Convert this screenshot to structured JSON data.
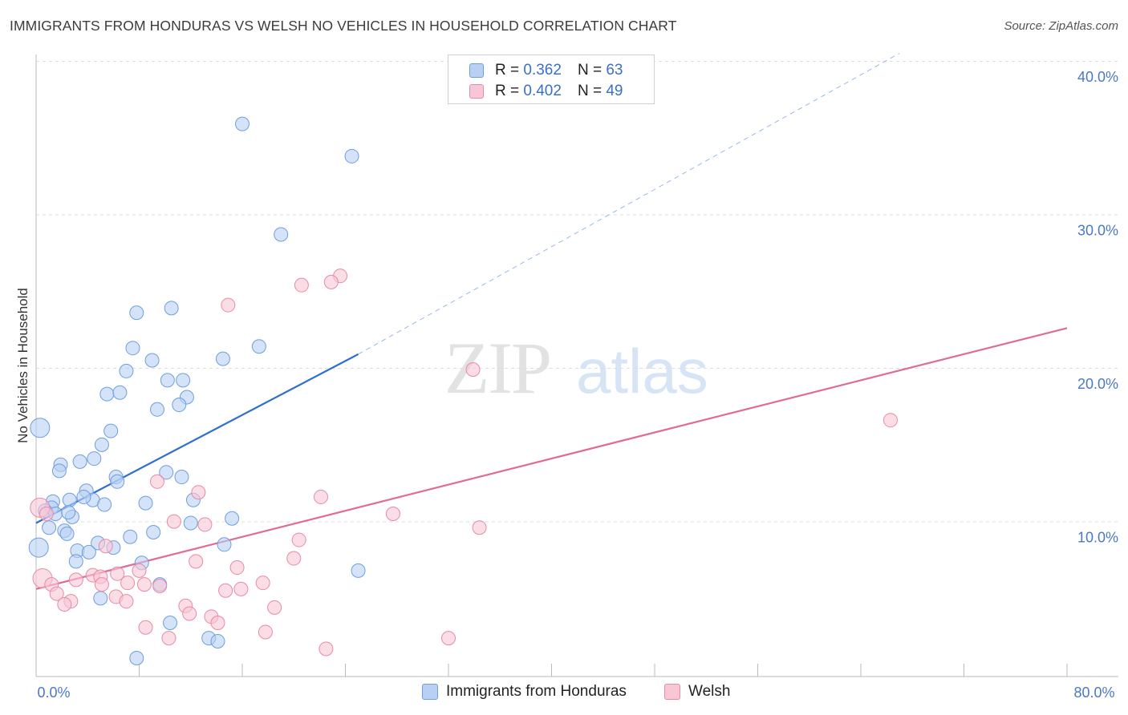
{
  "title": "IMMIGRANTS FROM HONDURAS VS WELSH NO VEHICLES IN HOUSEHOLD CORRELATION CHART",
  "source": "Source: ZipAtlas.com",
  "watermark": {
    "zip": "ZIP",
    "atlas": "atlas"
  },
  "legend": {
    "r_label": "R =",
    "n_label": "N =",
    "series": [
      {
        "name": "Immigrants from Honduras",
        "r": "0.362",
        "n": "63",
        "fill": "#b8d0f4",
        "stroke": "#6f9ee0"
      },
      {
        "name": "Welsh",
        "r": "0.402",
        "n": "49",
        "fill": "#f9c6d6",
        "stroke": "#e88aa8"
      }
    ]
  },
  "chart_data": {
    "type": "scatter",
    "title": "IMMIGRANTS FROM HONDURAS VS WELSH NO VEHICLES IN HOUSEHOLD CORRELATION CHART",
    "ylabel": "No Vehicles in Household",
    "xlabel": "",
    "xlim": [
      0,
      80
    ],
    "ylim": [
      0,
      40
    ],
    "x_tick_labels": [
      {
        "value": 0,
        "label": "0.0%"
      },
      {
        "value": 80,
        "label": "80.0%"
      }
    ],
    "y_tick_labels": [
      {
        "value": 10,
        "label": "10.0%"
      },
      {
        "value": 20,
        "label": "20.0%"
      },
      {
        "value": 30,
        "label": "30.0%"
      },
      {
        "value": 40,
        "label": "40.0%"
      }
    ],
    "grid": "horizontal dashed",
    "legend_placement": "top-center",
    "series": [
      {
        "name": "Immigrants from Honduras",
        "color": "#6f9ee0",
        "trend": {
          "x0": 0,
          "y0": 10.0,
          "x1": 25,
          "y1": 21.0,
          "extend_to_x": 67,
          "extend_y": 40.6,
          "color": "#2f6fd0"
        },
        "points": [
          [
            16,
            36.0
          ],
          [
            24.5,
            33.9
          ],
          [
            19,
            28.8
          ],
          [
            7.8,
            23.7
          ],
          [
            10.5,
            24.0
          ],
          [
            7.5,
            21.4
          ],
          [
            17.3,
            21.5
          ],
          [
            9,
            20.6
          ],
          [
            14.5,
            20.7
          ],
          [
            7,
            19.9
          ],
          [
            10.2,
            19.3
          ],
          [
            11.4,
            19.3
          ],
          [
            5.5,
            18.4
          ],
          [
            6.5,
            18.5
          ],
          [
            11.7,
            18.2
          ],
          [
            9.4,
            17.4
          ],
          [
            11.1,
            17.7
          ],
          [
            0.3,
            16.2
          ],
          [
            5.8,
            16.0
          ],
          [
            5.1,
            15.1
          ],
          [
            4.5,
            14.2
          ],
          [
            3.4,
            14.0
          ],
          [
            1.9,
            13.8
          ],
          [
            1.8,
            13.4
          ],
          [
            10.1,
            13.3
          ],
          [
            6.2,
            13.0
          ],
          [
            11.3,
            13.0
          ],
          [
            6.3,
            12.7
          ],
          [
            3.9,
            12.1
          ],
          [
            2.6,
            11.5
          ],
          [
            4.4,
            11.5
          ],
          [
            8.5,
            11.3
          ],
          [
            1.3,
            11.4
          ],
          [
            12.2,
            11.5
          ],
          [
            3.7,
            11.7
          ],
          [
            5.3,
            11.2
          ],
          [
            1.2,
            11.0
          ],
          [
            0.7,
            10.8
          ],
          [
            1.5,
            10.6
          ],
          [
            2.8,
            10.4
          ],
          [
            15.2,
            10.3
          ],
          [
            12,
            10.0
          ],
          [
            1,
            9.7
          ],
          [
            2.2,
            9.5
          ],
          [
            2.4,
            9.3
          ],
          [
            9.1,
            9.4
          ],
          [
            7.3,
            9.1
          ],
          [
            4.8,
            8.7
          ],
          [
            14.6,
            8.6
          ],
          [
            6,
            8.4
          ],
          [
            0.2,
            8.4
          ],
          [
            3.2,
            8.2
          ],
          [
            4.1,
            8.1
          ],
          [
            3.1,
            7.5
          ],
          [
            8.2,
            7.4
          ],
          [
            25,
            6.9
          ],
          [
            9.6,
            6.0
          ],
          [
            5,
            5.1
          ],
          [
            10.4,
            3.5
          ],
          [
            13.4,
            2.5
          ],
          [
            14.1,
            2.3
          ],
          [
            7.8,
            1.2
          ],
          [
            2.5,
            10.7
          ]
        ]
      },
      {
        "name": "Welsh",
        "color": "#e88aa8",
        "trend": {
          "x0": 0,
          "y0": 5.7,
          "x1": 80,
          "y1": 22.7,
          "color": "#e06b95"
        },
        "points": [
          [
            23.6,
            26.1
          ],
          [
            22.9,
            25.7
          ],
          [
            20.6,
            25.5
          ],
          [
            14.9,
            24.2
          ],
          [
            33.9,
            20.0
          ],
          [
            66.3,
            16.7
          ],
          [
            9.4,
            12.7
          ],
          [
            12.6,
            12.0
          ],
          [
            22.1,
            11.7
          ],
          [
            0.3,
            11.0
          ],
          [
            27.7,
            10.6
          ],
          [
            10.7,
            10.1
          ],
          [
            13.1,
            9.9
          ],
          [
            34.4,
            9.7
          ],
          [
            20.4,
            8.9
          ],
          [
            5.4,
            8.5
          ],
          [
            20.0,
            7.7
          ],
          [
            12.4,
            7.5
          ],
          [
            15.6,
            7.1
          ],
          [
            6.3,
            6.7
          ],
          [
            8.0,
            6.9
          ],
          [
            4.4,
            6.6
          ],
          [
            5.0,
            6.5
          ],
          [
            3.1,
            6.3
          ],
          [
            0.5,
            6.4
          ],
          [
            17.6,
            6.1
          ],
          [
            1.2,
            6.0
          ],
          [
            7.1,
            6.1
          ],
          [
            8.4,
            6.0
          ],
          [
            9.6,
            5.9
          ],
          [
            5.1,
            6.0
          ],
          [
            14.7,
            5.6
          ],
          [
            15.9,
            5.7
          ],
          [
            1.6,
            5.4
          ],
          [
            6.2,
            5.2
          ],
          [
            7.0,
            4.9
          ],
          [
            2.7,
            4.9
          ],
          [
            2.2,
            4.7
          ],
          [
            11.6,
            4.6
          ],
          [
            18.5,
            4.5
          ],
          [
            11.9,
            4.1
          ],
          [
            13.6,
            3.9
          ],
          [
            14.1,
            3.5
          ],
          [
            8.5,
            3.2
          ],
          [
            17.8,
            2.9
          ],
          [
            10.3,
            2.5
          ],
          [
            32.0,
            2.5
          ],
          [
            22.5,
            1.8
          ],
          [
            0.8,
            10.6
          ]
        ]
      }
    ]
  }
}
